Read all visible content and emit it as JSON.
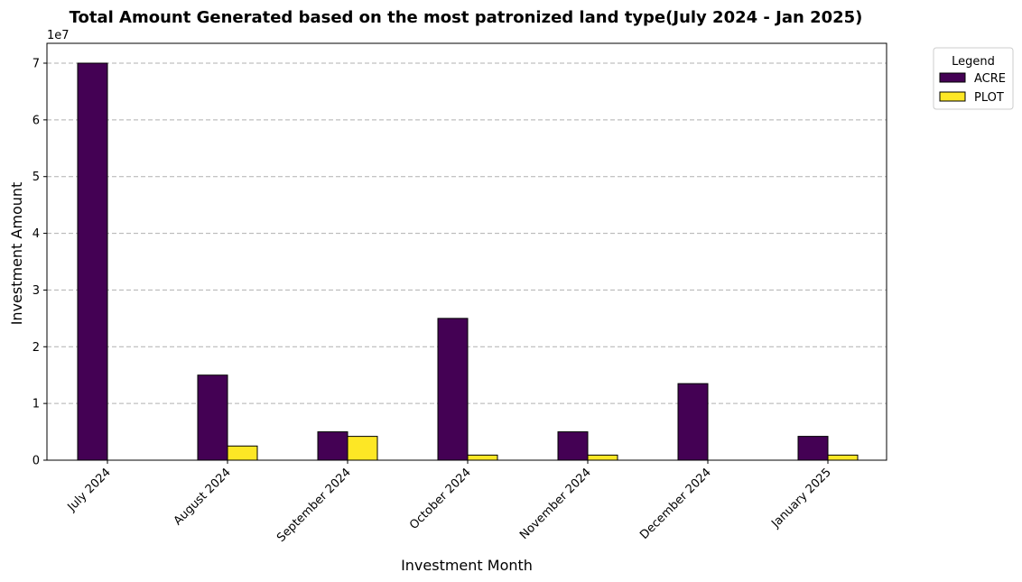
{
  "chart_data": {
    "type": "bar",
    "title": "Total Amount Generated based on the most patronized land type(July 2024 - Jan 2025)",
    "xlabel": "Investment Month",
    "ylabel": "Investment Amount",
    "y_offset_label": "1e7",
    "ylim": [
      0,
      73500000
    ],
    "yticks": [
      0,
      10000000,
      20000000,
      30000000,
      40000000,
      50000000,
      60000000,
      70000000
    ],
    "ytick_labels": [
      "0",
      "1",
      "2",
      "3",
      "4",
      "5",
      "6",
      "7"
    ],
    "grid": "y-dashed",
    "categories": [
      "July 2024",
      "August 2024",
      "September 2024",
      "October 2024",
      "November 2024",
      "December 2024",
      "January 2025"
    ],
    "series": [
      {
        "name": "ACRE",
        "color": "#440154",
        "values": [
          70000000,
          15000000,
          5000000,
          25000000,
          5000000,
          13500000,
          4200000
        ]
      },
      {
        "name": "PLOT",
        "color": "#fde725",
        "values": [
          0,
          2500000,
          4200000,
          900000,
          900000,
          0,
          900000
        ]
      }
    ],
    "legend": {
      "title": "Legend",
      "placement": "outside-top-right"
    }
  }
}
